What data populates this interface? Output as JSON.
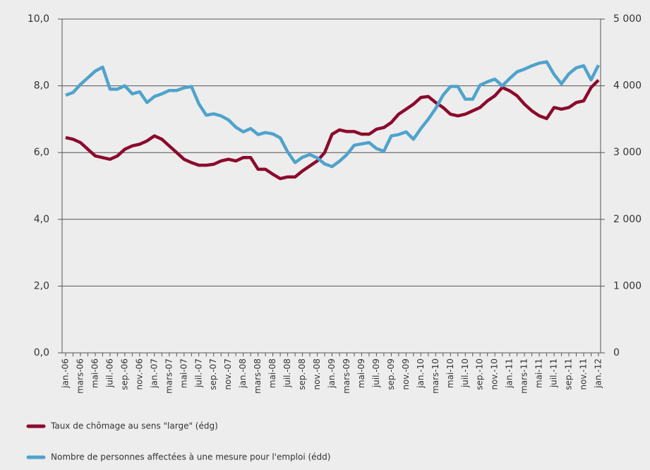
{
  "chart_data": {
    "type": "line",
    "categories": [
      "jan.-06",
      null,
      "mars-06",
      null,
      "mai-06",
      null,
      "juil.-06",
      null,
      "sep.-06",
      null,
      "nov.-06",
      null,
      "jan.-07",
      null,
      "mars-07",
      null,
      "mai-07",
      null,
      "juil.-07",
      null,
      "sep.-07",
      null,
      "nov.-07",
      null,
      "jan.-08",
      null,
      "mars-08",
      null,
      "mai-08",
      null,
      "juil.-08",
      null,
      "sep.-08",
      null,
      "nov.-08",
      null,
      "jan.-09",
      null,
      "mars-09",
      null,
      "mai-09",
      null,
      "juil.-09",
      null,
      "sep.-09",
      null,
      "nov.-09",
      null,
      "jan.-10",
      null,
      "mars-10",
      null,
      "mai-10",
      null,
      "juil.-10",
      null,
      "sep.-10",
      null,
      "nov.-10",
      null,
      "jan.-11",
      null,
      "mars-11",
      null,
      "mai-11",
      null,
      "juil.-11",
      null,
      "sep.-11",
      null,
      "nov.-11",
      null,
      "jan.-12"
    ],
    "series": [
      {
        "name": "Taux de chômage au sens \"large\" (édg)",
        "color": "#8b0a2e",
        "axis": "y",
        "values": [
          6.45,
          6.4,
          6.3,
          6.1,
          5.9,
          5.85,
          5.8,
          5.9,
          6.1,
          6.2,
          6.25,
          6.35,
          6.5,
          6.4,
          6.2,
          6.0,
          5.8,
          5.7,
          5.62,
          5.62,
          5.65,
          5.75,
          5.8,
          5.75,
          5.85,
          5.85,
          5.5,
          5.5,
          5.35,
          5.22,
          5.27,
          5.27,
          5.45,
          5.6,
          5.75,
          6.0,
          6.55,
          6.68,
          6.63,
          6.63,
          6.55,
          6.55,
          6.7,
          6.75,
          6.9,
          7.15,
          7.3,
          7.45,
          7.65,
          7.68,
          7.5,
          7.35,
          7.15,
          7.1,
          7.15,
          7.25,
          7.35,
          7.55,
          7.7,
          7.95,
          7.85,
          7.7,
          7.45,
          7.25,
          7.1,
          7.02,
          7.35,
          7.3,
          7.35,
          7.5,
          7.55,
          7.95,
          8.17
        ]
      },
      {
        "name": "Nombre de personnes affectées à une mesure pour l'emploi (édd)",
        "color": "#4fa3cc",
        "axis": "y2",
        "values": [
          3860,
          3900,
          4020,
          4120,
          4220,
          4280,
          3950,
          3950,
          4000,
          3880,
          3910,
          3750,
          3840,
          3880,
          3930,
          3930,
          3970,
          3990,
          3730,
          3560,
          3580,
          3550,
          3490,
          3380,
          3310,
          3360,
          3270,
          3300,
          3280,
          3220,
          3010,
          2850,
          2930,
          2970,
          2920,
          2830,
          2790,
          2870,
          2970,
          3110,
          3130,
          3150,
          3060,
          3020,
          3250,
          3270,
          3310,
          3200,
          3360,
          3500,
          3660,
          3860,
          3990,
          3990,
          3800,
          3800,
          4010,
          4060,
          4100,
          4000,
          4110,
          4210,
          4250,
          4300,
          4340,
          4360,
          4170,
          4030,
          4180,
          4270,
          4300,
          4090,
          4310
        ]
      }
    ],
    "ylim": [
      0,
      10
    ],
    "yticks": [
      {
        "value": 0,
        "label": "0,0"
      },
      {
        "value": 2,
        "label": "2,0"
      },
      {
        "value": 4,
        "label": "4,0"
      },
      {
        "value": 6,
        "label": "6,0"
      },
      {
        "value": 8,
        "label": "8,0"
      },
      {
        "value": 10,
        "label": "10,0"
      }
    ],
    "y2lim": [
      0,
      5000
    ],
    "y2ticks": [
      0,
      {
        "value": 1000,
        "label": "1 000"
      },
      {
        "value": 2000,
        "label": "2 000"
      },
      {
        "value": 3000,
        "label": "3 000"
      },
      {
        "value": 4000,
        "label": "4 000"
      },
      {
        "value": 5000,
        "label": "5 000"
      }
    ],
    "grid": true
  }
}
